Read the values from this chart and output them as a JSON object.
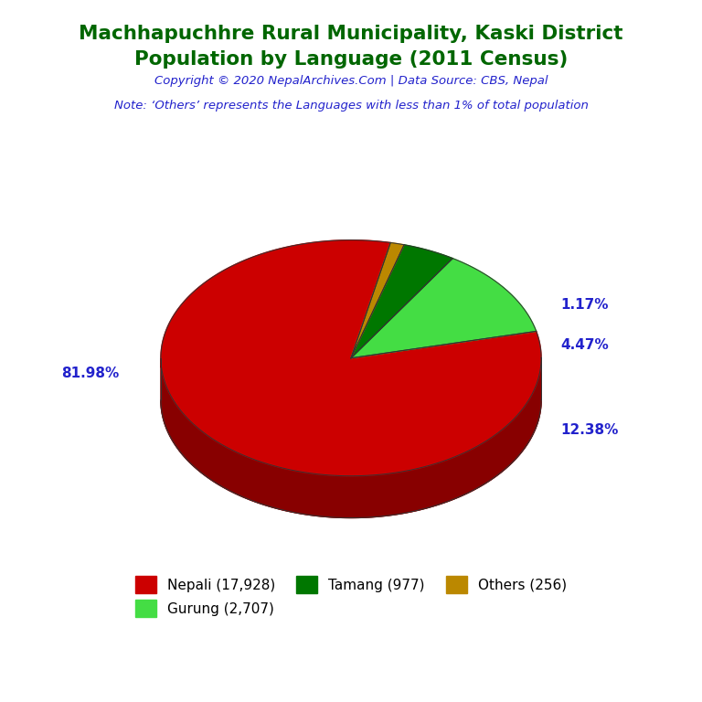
{
  "title_line1": "Machhapuchhre Rural Municipality, Kaski District",
  "title_line2": "Population by Language (2011 Census)",
  "copyright": "Copyright © 2020 NepalArchives.Com | Data Source: CBS, Nepal",
  "note": "Note: ‘Others’ represents the Languages with less than 1% of total population",
  "labels": [
    "Nepali (17,928)",
    "Gurung (2,707)",
    "Tamang (977)",
    "Others (256)"
  ],
  "values": [
    17928,
    2707,
    977,
    256
  ],
  "pct_labels": [
    "81.98%",
    "12.38%",
    "4.47%",
    "1.17%"
  ],
  "colors": [
    "#cc0000",
    "#44dd44",
    "#007700",
    "#bb8800"
  ],
  "shadow_colors": [
    "#880000",
    "#22aa22",
    "#004400",
    "#886600"
  ],
  "title_color": "#006600",
  "copyright_color": "#2222cc",
  "note_color": "#2222cc",
  "pct_color": "#2222cc",
  "background_color": "#ffffff",
  "start_angle": 78,
  "yscale": 0.62,
  "depth": 0.22
}
